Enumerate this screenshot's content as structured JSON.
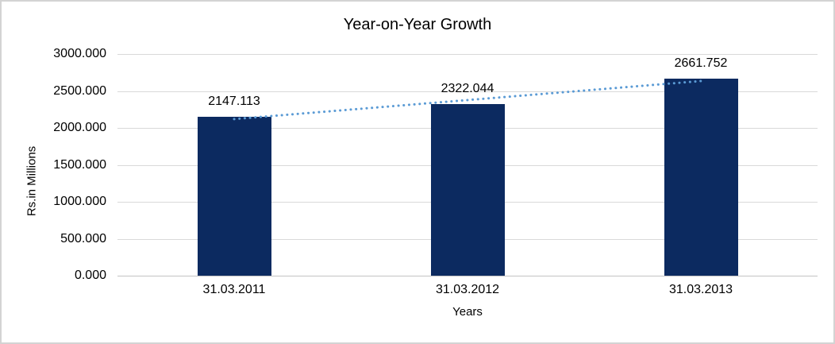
{
  "chart_data": {
    "type": "bar",
    "title": "Year-on-Year Growth",
    "xlabel": "Years",
    "ylabel": "Rs.in Millions",
    "categories": [
      "31.03.2011",
      "31.03.2012",
      "31.03.2013"
    ],
    "values": [
      2147.113,
      2322.044,
      2661.752
    ],
    "data_labels": [
      "2147.113",
      "2322.044",
      "2661.752"
    ],
    "ylim": [
      0,
      3000
    ],
    "ytick_step": 500,
    "ytick_labels": [
      "0.000",
      "500.000",
      "1000.000",
      "1500.000",
      "2000.000",
      "2500.000",
      "3000.000"
    ],
    "grid": true,
    "legend": "none",
    "trendline": {
      "type": "linear",
      "style": "dotted"
    },
    "colors": {
      "bar": "#0c2a60",
      "trendline": "#5b9bd5",
      "gridline": "#d9d9d9",
      "axis_line": "#c3c3c3",
      "text": "#000000"
    }
  }
}
